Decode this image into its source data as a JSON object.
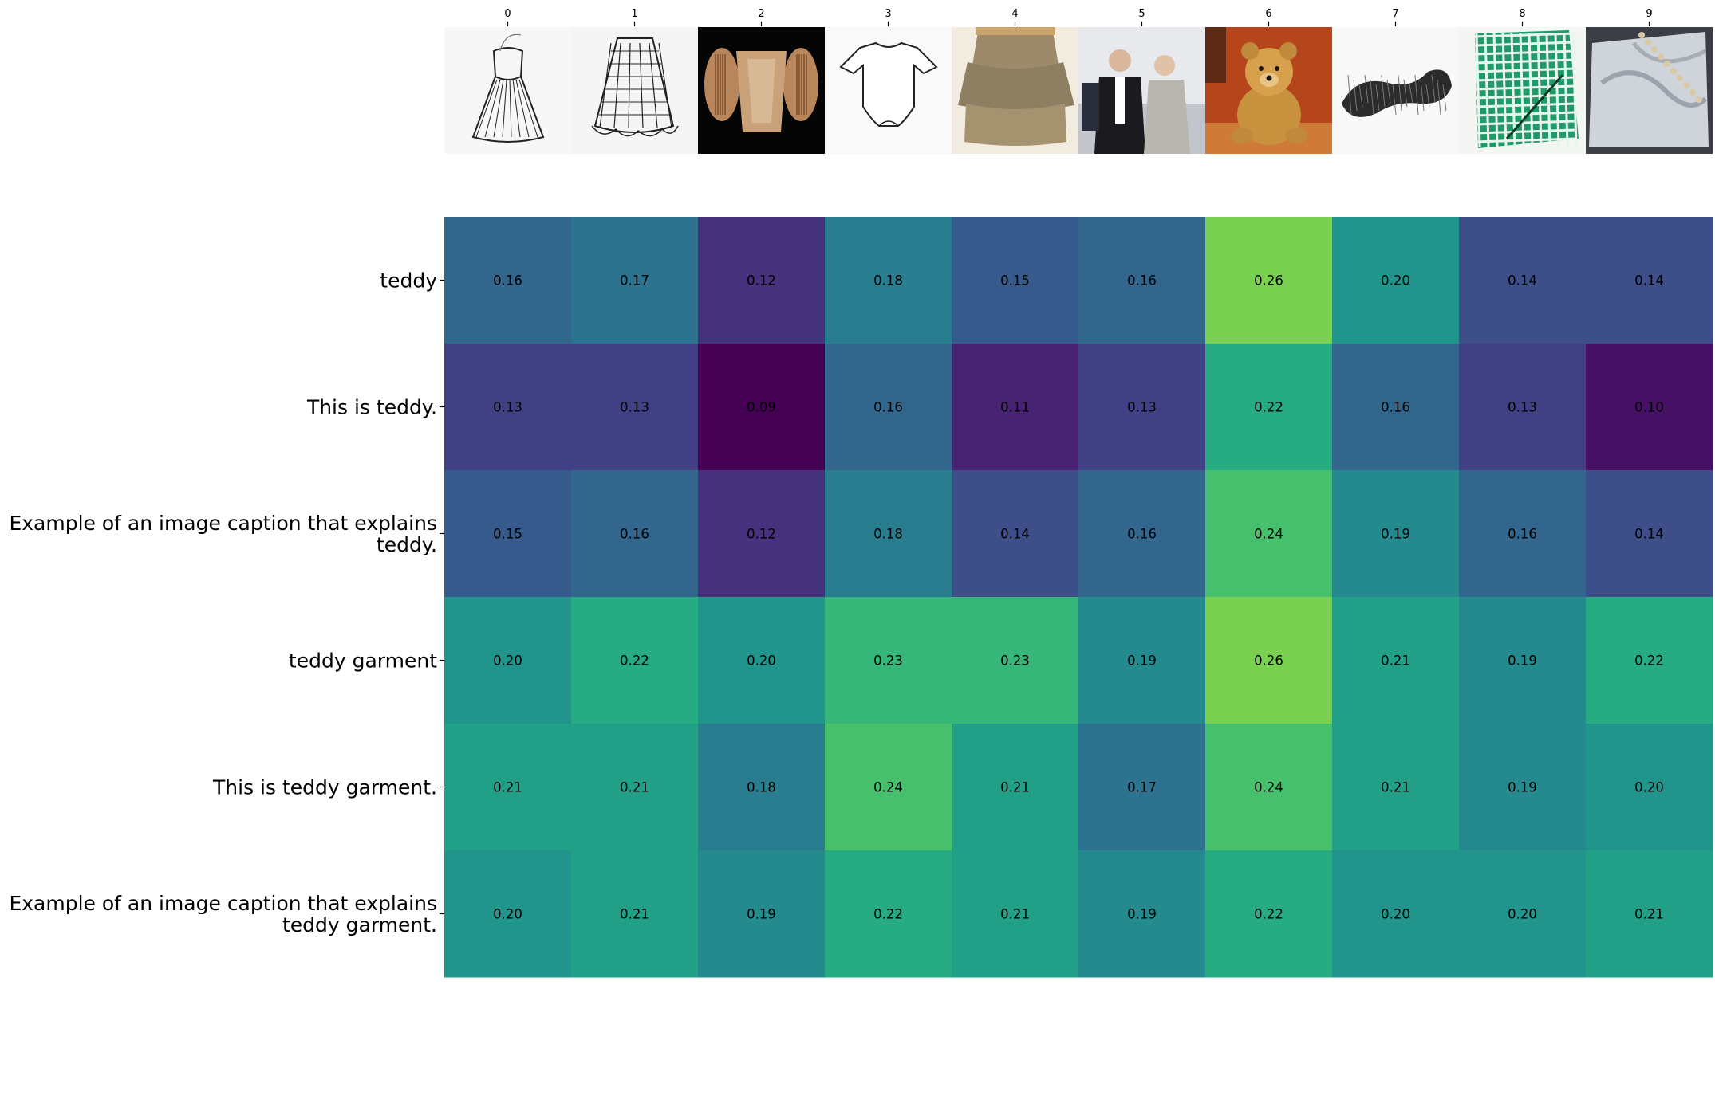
{
  "chart_data": {
    "type": "heatmap",
    "colormap": "viridis",
    "color_range": [
      0.09,
      0.26
    ],
    "x_ticks": [
      "0",
      "1",
      "2",
      "3",
      "4",
      "5",
      "6",
      "7",
      "8",
      "9"
    ],
    "x_tick_position": "top",
    "column_images": [
      {
        "icon": "sketch-corset-dress-image"
      },
      {
        "icon": "sketch-plaid-skirt-image"
      },
      {
        "icon": "ornate-bodice-image"
      },
      {
        "icon": "sketch-baby-onesie-image"
      },
      {
        "icon": "tweed-tiered-skirt-image"
      },
      {
        "icon": "officers-ceremony-photo-image"
      },
      {
        "icon": "teddy-bear-photo-image"
      },
      {
        "icon": "fuzzy-fur-scarf-image"
      },
      {
        "icon": "green-gingham-cloth-image"
      },
      {
        "icon": "lace-trimmed-fabric-image"
      }
    ],
    "rows": [
      {
        "label_lines": [
          "teddy"
        ],
        "values": [
          0.16,
          0.17,
          0.12,
          0.18,
          0.15,
          0.16,
          0.26,
          0.2,
          0.14,
          0.14
        ],
        "labels": [
          "0.16",
          "0.17",
          "0.12",
          "0.18",
          "0.15",
          "0.16",
          "0.26",
          "0.20",
          "0.14",
          "0.14"
        ]
      },
      {
        "label_lines": [
          "This is teddy."
        ],
        "values": [
          0.13,
          0.13,
          0.09,
          0.16,
          0.11,
          0.13,
          0.22,
          0.16,
          0.13,
          0.1
        ],
        "labels": [
          "0.13",
          "0.13",
          "0.09",
          "0.16",
          "0.11",
          "0.13",
          "0.22",
          "0.16",
          "0.13",
          "0.10"
        ]
      },
      {
        "label_lines": [
          "Example of an image caption that explains",
          "teddy."
        ],
        "values": [
          0.15,
          0.16,
          0.12,
          0.18,
          0.14,
          0.16,
          0.24,
          0.19,
          0.16,
          0.14
        ],
        "labels": [
          "0.15",
          "0.16",
          "0.12",
          "0.18",
          "0.14",
          "0.16",
          "0.24",
          "0.19",
          "0.16",
          "0.14"
        ]
      },
      {
        "label_lines": [
          "teddy garment"
        ],
        "values": [
          0.2,
          0.22,
          0.2,
          0.23,
          0.23,
          0.19,
          0.26,
          0.21,
          0.19,
          0.22
        ],
        "labels": [
          "0.20",
          "0.22",
          "0.20",
          "0.23",
          "0.23",
          "0.19",
          "0.26",
          "0.21",
          "0.19",
          "0.22"
        ]
      },
      {
        "label_lines": [
          "This is teddy garment."
        ],
        "values": [
          0.21,
          0.21,
          0.18,
          0.24,
          0.21,
          0.17,
          0.24,
          0.21,
          0.19,
          0.2
        ],
        "labels": [
          "0.21",
          "0.21",
          "0.18",
          "0.24",
          "0.21",
          "0.17",
          "0.24",
          "0.21",
          "0.19",
          "0.20"
        ]
      },
      {
        "label_lines": [
          "Example of an image caption that explains",
          "teddy garment."
        ],
        "values": [
          0.2,
          0.21,
          0.19,
          0.22,
          0.21,
          0.19,
          0.22,
          0.2,
          0.2,
          0.21
        ],
        "labels": [
          "0.20",
          "0.21",
          "0.19",
          "0.22",
          "0.21",
          "0.19",
          "0.22",
          "0.20",
          "0.20",
          "0.21"
        ]
      }
    ]
  }
}
